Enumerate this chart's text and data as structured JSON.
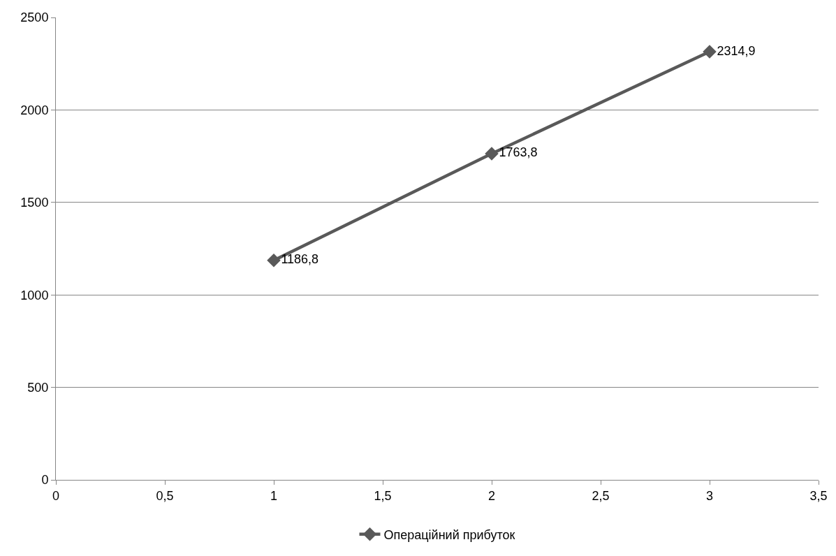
{
  "chart_data": {
    "type": "line",
    "x": [
      1,
      2,
      3
    ],
    "series": [
      {
        "name": "Операційний прибуток",
        "color": "#595959",
        "values": [
          1186.8,
          1763.8,
          2314.9
        ],
        "value_labels": [
          "1186,8",
          "1763,8",
          "2314,9"
        ]
      }
    ],
    "xlim": [
      0,
      3.5
    ],
    "xticks": [
      0,
      {
        "value": 0.5,
        "label": "0,5"
      },
      1,
      {
        "value": 1.5,
        "label": "1,5"
      },
      2,
      {
        "value": 2.5,
        "label": "2,5"
      },
      3,
      {
        "value": 3.5,
        "label": "3,5"
      }
    ],
    "ylim": [
      0,
      2500
    ],
    "yticks": [
      0,
      500,
      1000,
      1500,
      2000,
      2500
    ],
    "grid": "y",
    "legend": "bottom",
    "marker": "diamond",
    "line_style": "solid"
  }
}
